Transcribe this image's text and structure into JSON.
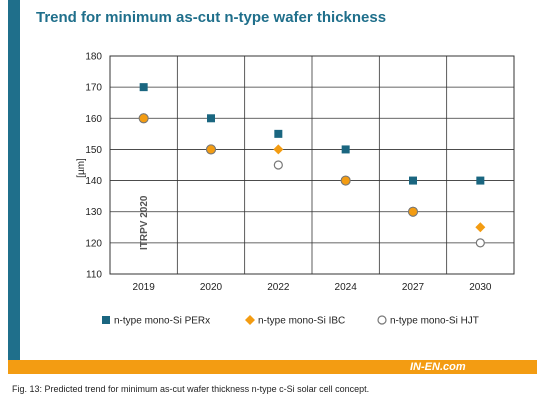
{
  "title": "Trend for minimum as-cut n-type wafer thickness",
  "caption": "Fig. 13: Predicted trend for minimum as-cut wafer thickness n-type c-Si solar cell concept.",
  "brand": "IN-EN.com",
  "watermark": "ITRPV 2020",
  "colors": {
    "accent": "#1f6f8b",
    "orange": "#f39c12",
    "perx": "#1a6680",
    "ibc": "#f39c12",
    "hjt": "#777777"
  },
  "chart_data": {
    "type": "scatter",
    "title": "Trend for minimum as-cut n-type wafer thickness",
    "xlabel": "",
    "ylabel": "[µm]",
    "categories": [
      "2019",
      "2020",
      "2022",
      "2024",
      "2027",
      "2030"
    ],
    "ylim": [
      110,
      180
    ],
    "yticks": [
      110,
      120,
      130,
      140,
      150,
      160,
      170,
      180
    ],
    "grid": true,
    "legend": "bottom",
    "series": [
      {
        "name": "n-type mono-Si PERx",
        "marker": "square",
        "values": [
          170,
          160,
          155,
          150,
          140,
          140
        ]
      },
      {
        "name": "n-type mono-Si IBC",
        "marker": "diamond",
        "values": [
          160,
          150,
          150,
          140,
          130,
          125
        ]
      },
      {
        "name": "n-type mono-Si HJT",
        "marker": "circle-open",
        "values": [
          160,
          150,
          145,
          140,
          130,
          120
        ]
      }
    ]
  }
}
